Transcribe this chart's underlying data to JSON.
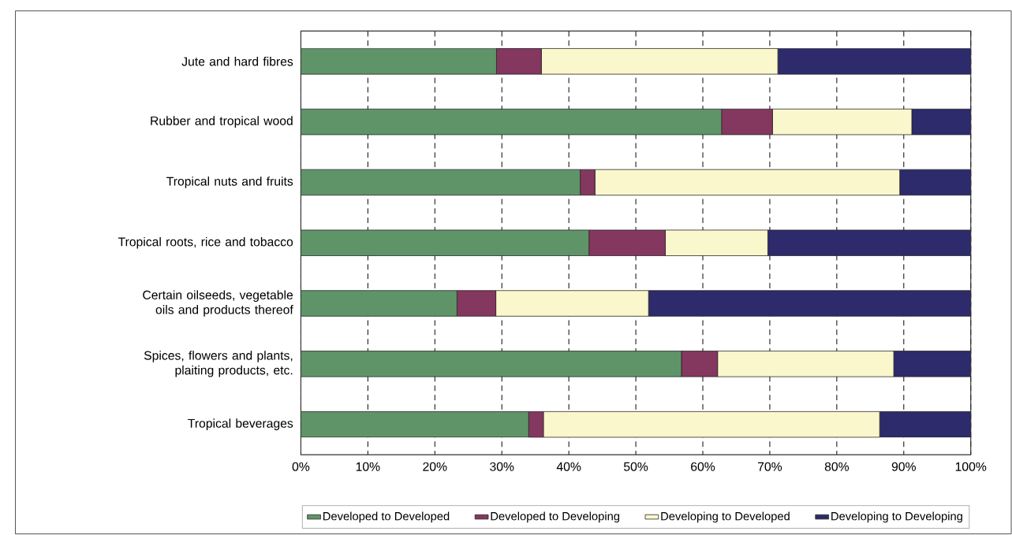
{
  "chart_data": {
    "type": "bar",
    "orientation": "horizontal",
    "stacked": true,
    "categories": [
      "Jute and hard fibres",
      "Rubber and tropical wood",
      "Tropical nuts and fruits",
      "Tropical roots, rice and tobacco",
      "Certain oilseeds, vegetable oils and products thereof",
      "Spices, flowers and plants, plaiting products, etc.",
      "Tropical beverages"
    ],
    "series": [
      {
        "name": "Developed to Developed",
        "color": "#5f9469",
        "values": [
          29.2,
          62.8,
          41.7,
          43.0,
          23.3,
          56.8,
          34.0
        ]
      },
      {
        "name": "Developed  to Developing",
        "color": "#84375f",
        "values": [
          6.7,
          7.6,
          2.2,
          11.4,
          5.8,
          5.4,
          2.2
        ]
      },
      {
        "name": "Developing to Developed",
        "color": "#faf7cc",
        "values": [
          35.3,
          20.8,
          45.5,
          15.3,
          22.8,
          26.3,
          50.2
        ]
      },
      {
        "name": "Developing to Developing",
        "color": "#2d2b6b",
        "values": [
          28.8,
          8.8,
          10.6,
          30.3,
          48.1,
          11.5,
          13.6
        ]
      }
    ],
    "xlim": [
      0,
      100
    ],
    "xticks": [
      {
        "value": 0,
        "label": "0%"
      },
      {
        "value": 10,
        "label": "10%"
      },
      {
        "value": 20,
        "label": "20%"
      },
      {
        "value": 30,
        "label": "30%"
      },
      {
        "value": 40,
        "label": "40%"
      },
      {
        "value": 50,
        "label": "50%"
      },
      {
        "value": 60,
        "label": "60%"
      },
      {
        "value": 70,
        "label": "70%"
      },
      {
        "value": 80,
        "label": "80%"
      },
      {
        "value": 90,
        "label": "90%"
      },
      {
        "value": 100,
        "label": "100%"
      }
    ],
    "grid": "x",
    "legend": "bottom"
  }
}
